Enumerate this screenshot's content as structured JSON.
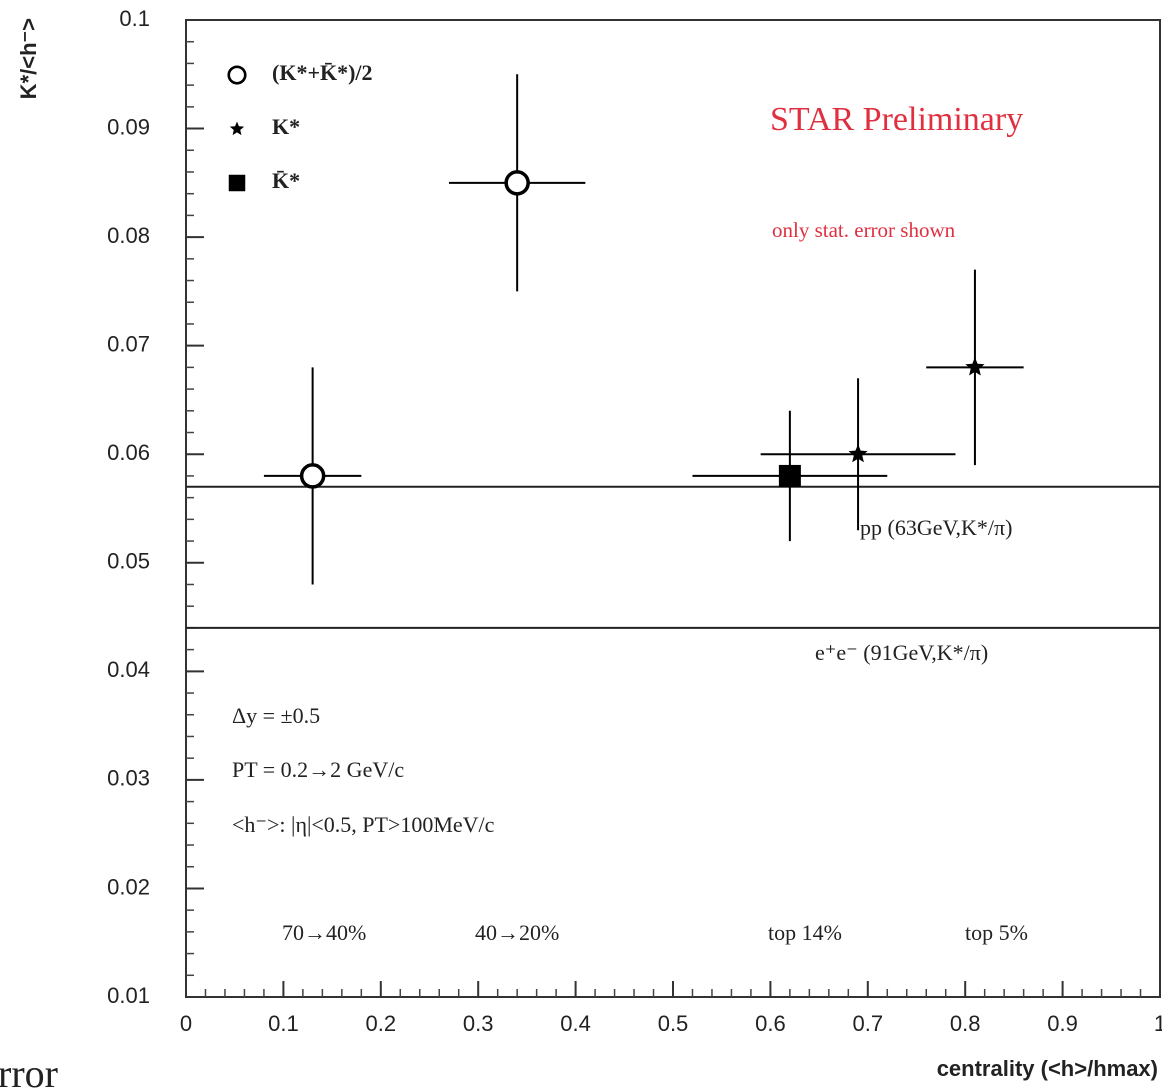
{
  "chart_data": {
    "type": "errorbar",
    "y_label": "K*/<h⁻>",
    "x_label": "centrality (<h>/hmax)",
    "xlim": [
      0,
      1
    ],
    "xticks": [
      0,
      0.1,
      0.2,
      0.3,
      0.4,
      0.5,
      0.6,
      0.7,
      0.8,
      0.9,
      1
    ],
    "ylim": [
      0.01,
      0.1
    ],
    "yticks": [
      0.01,
      0.02,
      0.03,
      0.04,
      0.05,
      0.06,
      0.07,
      0.08,
      0.09,
      0.1
    ],
    "series": [
      {
        "name": "(K*+K̄*)/2",
        "color": "#000000",
        "marker": "circle",
        "x": [
          0.13,
          0.34
        ],
        "values": [
          0.058,
          0.085
        ],
        "xerr": [
          0.05,
          0.07
        ],
        "yerr": [
          0.01,
          0.01
        ]
      },
      {
        "name": "K*",
        "color": "#000000",
        "marker": "star",
        "x": [
          0.69,
          0.81
        ],
        "values": [
          0.06,
          0.068
        ],
        "xerr": [
          0.1,
          0.05
        ],
        "yerr": [
          0.007,
          0.009
        ]
      },
      {
        "name": "K̄*",
        "color": "#000000",
        "marker": "square",
        "x": [
          0.62
        ],
        "values": [
          0.058
        ],
        "xerr": [
          0.1
        ],
        "yerr": [
          0.006
        ]
      }
    ],
    "reference_lines": [
      {
        "label": "pp (63GeV,K*/π)",
        "value": 0.057
      },
      {
        "label": "e⁺e⁻ (91GeV,K*/π)",
        "value": 0.044
      }
    ],
    "annotations": {
      "preliminary": "STAR Preliminary",
      "errors": "only stat. error shown",
      "rapidity": "Δy = ±0.5",
      "pt_range": "PT = 0.2→2 GeV/c",
      "h_def": "<h⁻>: |η|<0.5, PT>100MeV/c",
      "centrality": [
        "70→40%",
        "40→20%",
        "top 14%",
        "top 5%"
      ],
      "fragment": "rror"
    }
  }
}
